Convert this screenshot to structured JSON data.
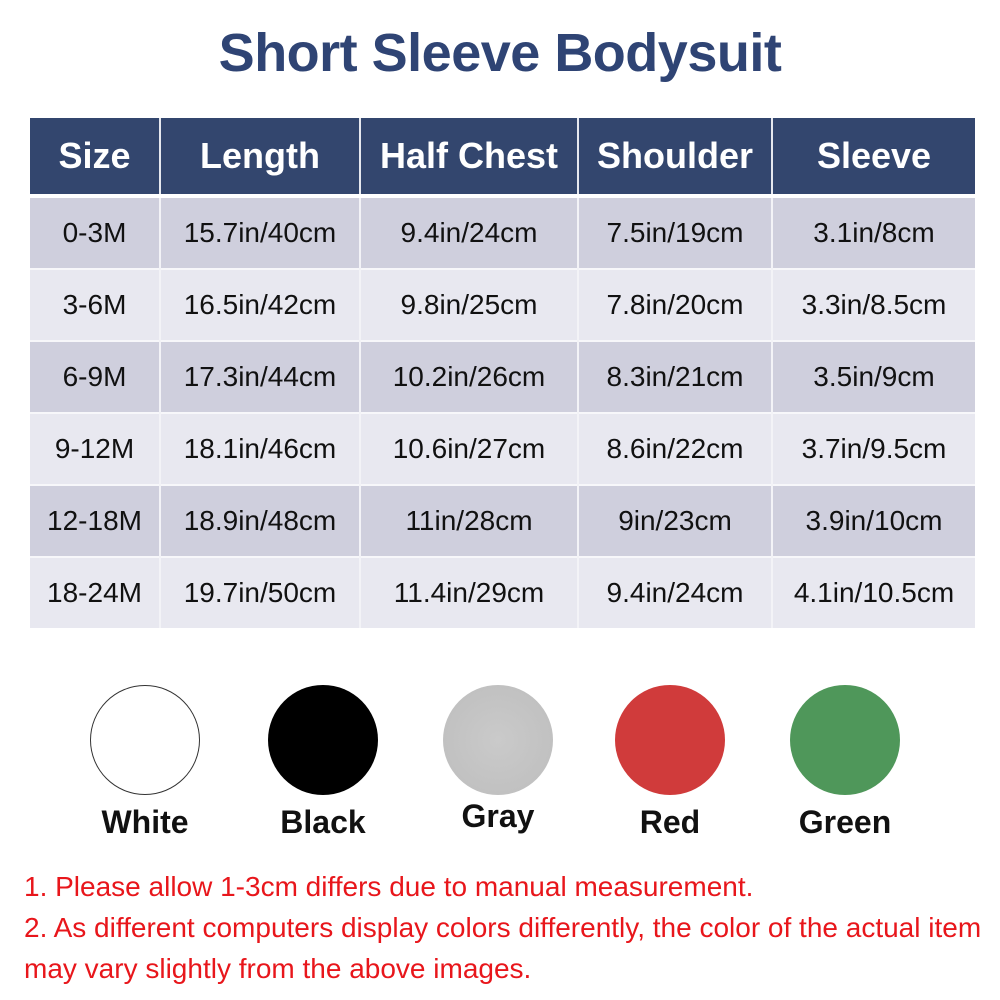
{
  "title": "Short Sleeve Bodysuit",
  "table": {
    "headers": [
      "Size",
      "Length",
      "Half Chest",
      "Shoulder",
      "Sleeve"
    ],
    "rows": [
      [
        "0-3M",
        "15.7in/40cm",
        "9.4in/24cm",
        "7.5in/19cm",
        "3.1in/8cm"
      ],
      [
        "3-6M",
        "16.5in/42cm",
        "9.8in/25cm",
        "7.8in/20cm",
        "3.3in/8.5cm"
      ],
      [
        "6-9M",
        "17.3in/44cm",
        "10.2in/26cm",
        "8.3in/21cm",
        "3.5in/9cm"
      ],
      [
        "9-12M",
        "18.1in/46cm",
        "10.6in/27cm",
        "8.6in/22cm",
        "3.7in/9.5cm"
      ],
      [
        "12-18M",
        "18.9in/48cm",
        "11in/28cm",
        "9in/23cm",
        "3.9in/10cm"
      ],
      [
        "18-24M",
        "19.7in/50cm",
        "11.4in/29cm",
        "9.4in/24cm",
        "4.1in/10.5cm"
      ]
    ]
  },
  "colors": [
    {
      "label": "White",
      "hex": "#ffffff"
    },
    {
      "label": "Black",
      "hex": "#000000"
    },
    {
      "label": "Gray",
      "hex": "#c4c4c4"
    },
    {
      "label": "Red",
      "hex": "#d03b3b"
    },
    {
      "label": "Green",
      "hex": "#4f975a"
    }
  ],
  "notes": [
    "1. Please allow 1-3cm differs due to manual measurement.",
    "2. As different computers display colors differently, the color of the actual item may vary slightly from the above images."
  ]
}
